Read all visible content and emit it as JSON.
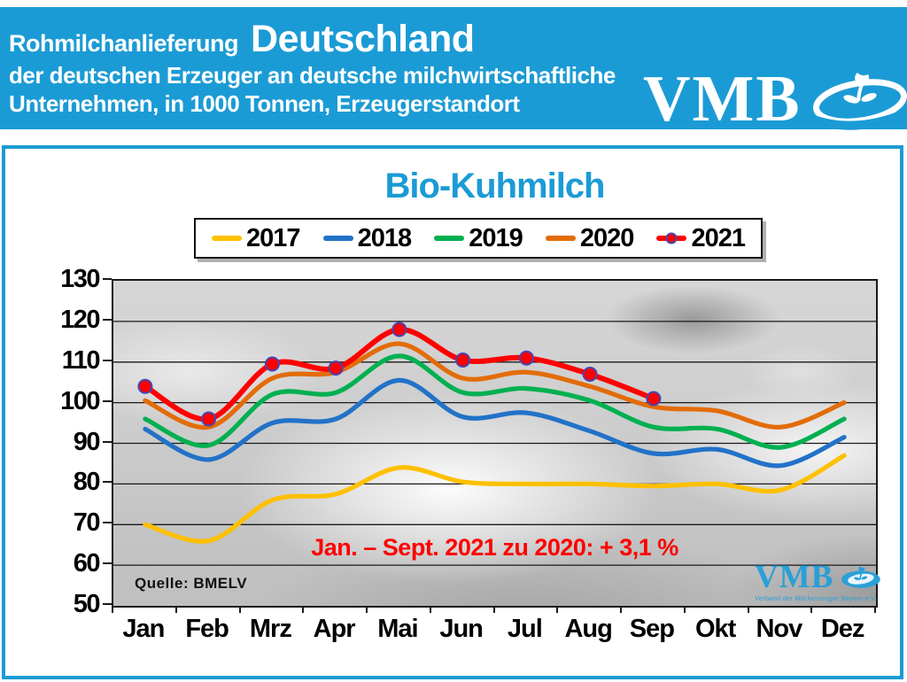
{
  "header": {
    "bg_color": "#1B9BD5",
    "title_small": "Rohmilchanlieferung",
    "title_large": "Deutschland",
    "subtitle1": "der deutschen Erzeuger an deutsche milchwirtschaftliche",
    "subtitle2": "Unternehmen, in 1000 Tonnen, Erzeugerstandort",
    "logo_text": "VMB"
  },
  "card": {
    "border_color": "#1B9BD5",
    "title": "Bio-Kuhmilch",
    "title_color": "#1B9BD5",
    "annotation": "Jan. – Sept. 2021 zu 2020: + 3,1 %",
    "annotation_color": "#FF0000",
    "source": "Quelle:  BMELV",
    "watermark_text": "VMB",
    "watermark_tagline": "Verband der Milcherzeuger Bayern e.V."
  },
  "chart_data": {
    "type": "line",
    "title": "Bio-Kuhmilch",
    "categories": [
      "Jan",
      "Feb",
      "Mrz",
      "Apr",
      "Mai",
      "Jun",
      "Jul",
      "Aug",
      "Sep",
      "Okt",
      "Nov",
      "Dez"
    ],
    "ylim": [
      50,
      130
    ],
    "ytick_step": 10,
    "grid": true,
    "grid_color": "#1a1a1a",
    "legend_position": "top",
    "marker_ring_color": "#4646B4",
    "series": [
      {
        "name": "2017",
        "color": "#FFC000",
        "marker": false,
        "values": [
          70,
          66,
          76,
          77.5,
          84,
          80.5,
          80,
          80,
          79.5,
          80,
          78.5,
          87
        ]
      },
      {
        "name": "2018",
        "color": "#2272C8",
        "marker": false,
        "values": [
          93.5,
          86,
          95,
          96,
          105.5,
          96.5,
          97.5,
          93,
          87.5,
          88.5,
          84.5,
          91.5
        ]
      },
      {
        "name": "2019",
        "color": "#00B050",
        "marker": false,
        "values": [
          96,
          89.5,
          102,
          102.5,
          111.5,
          102.5,
          103.5,
          100.5,
          94,
          93.5,
          89,
          96
        ]
      },
      {
        "name": "2020",
        "color": "#E36C09",
        "marker": false,
        "values": [
          100.5,
          94,
          106,
          107.5,
          114.5,
          106,
          107.5,
          104,
          99,
          98,
          94,
          100
        ]
      },
      {
        "name": "2021",
        "color": "#FF0000",
        "marker": true,
        "values": [
          104,
          96,
          109.5,
          108.5,
          118,
          110.5,
          111,
          107,
          101,
          null,
          null,
          null
        ]
      }
    ]
  }
}
